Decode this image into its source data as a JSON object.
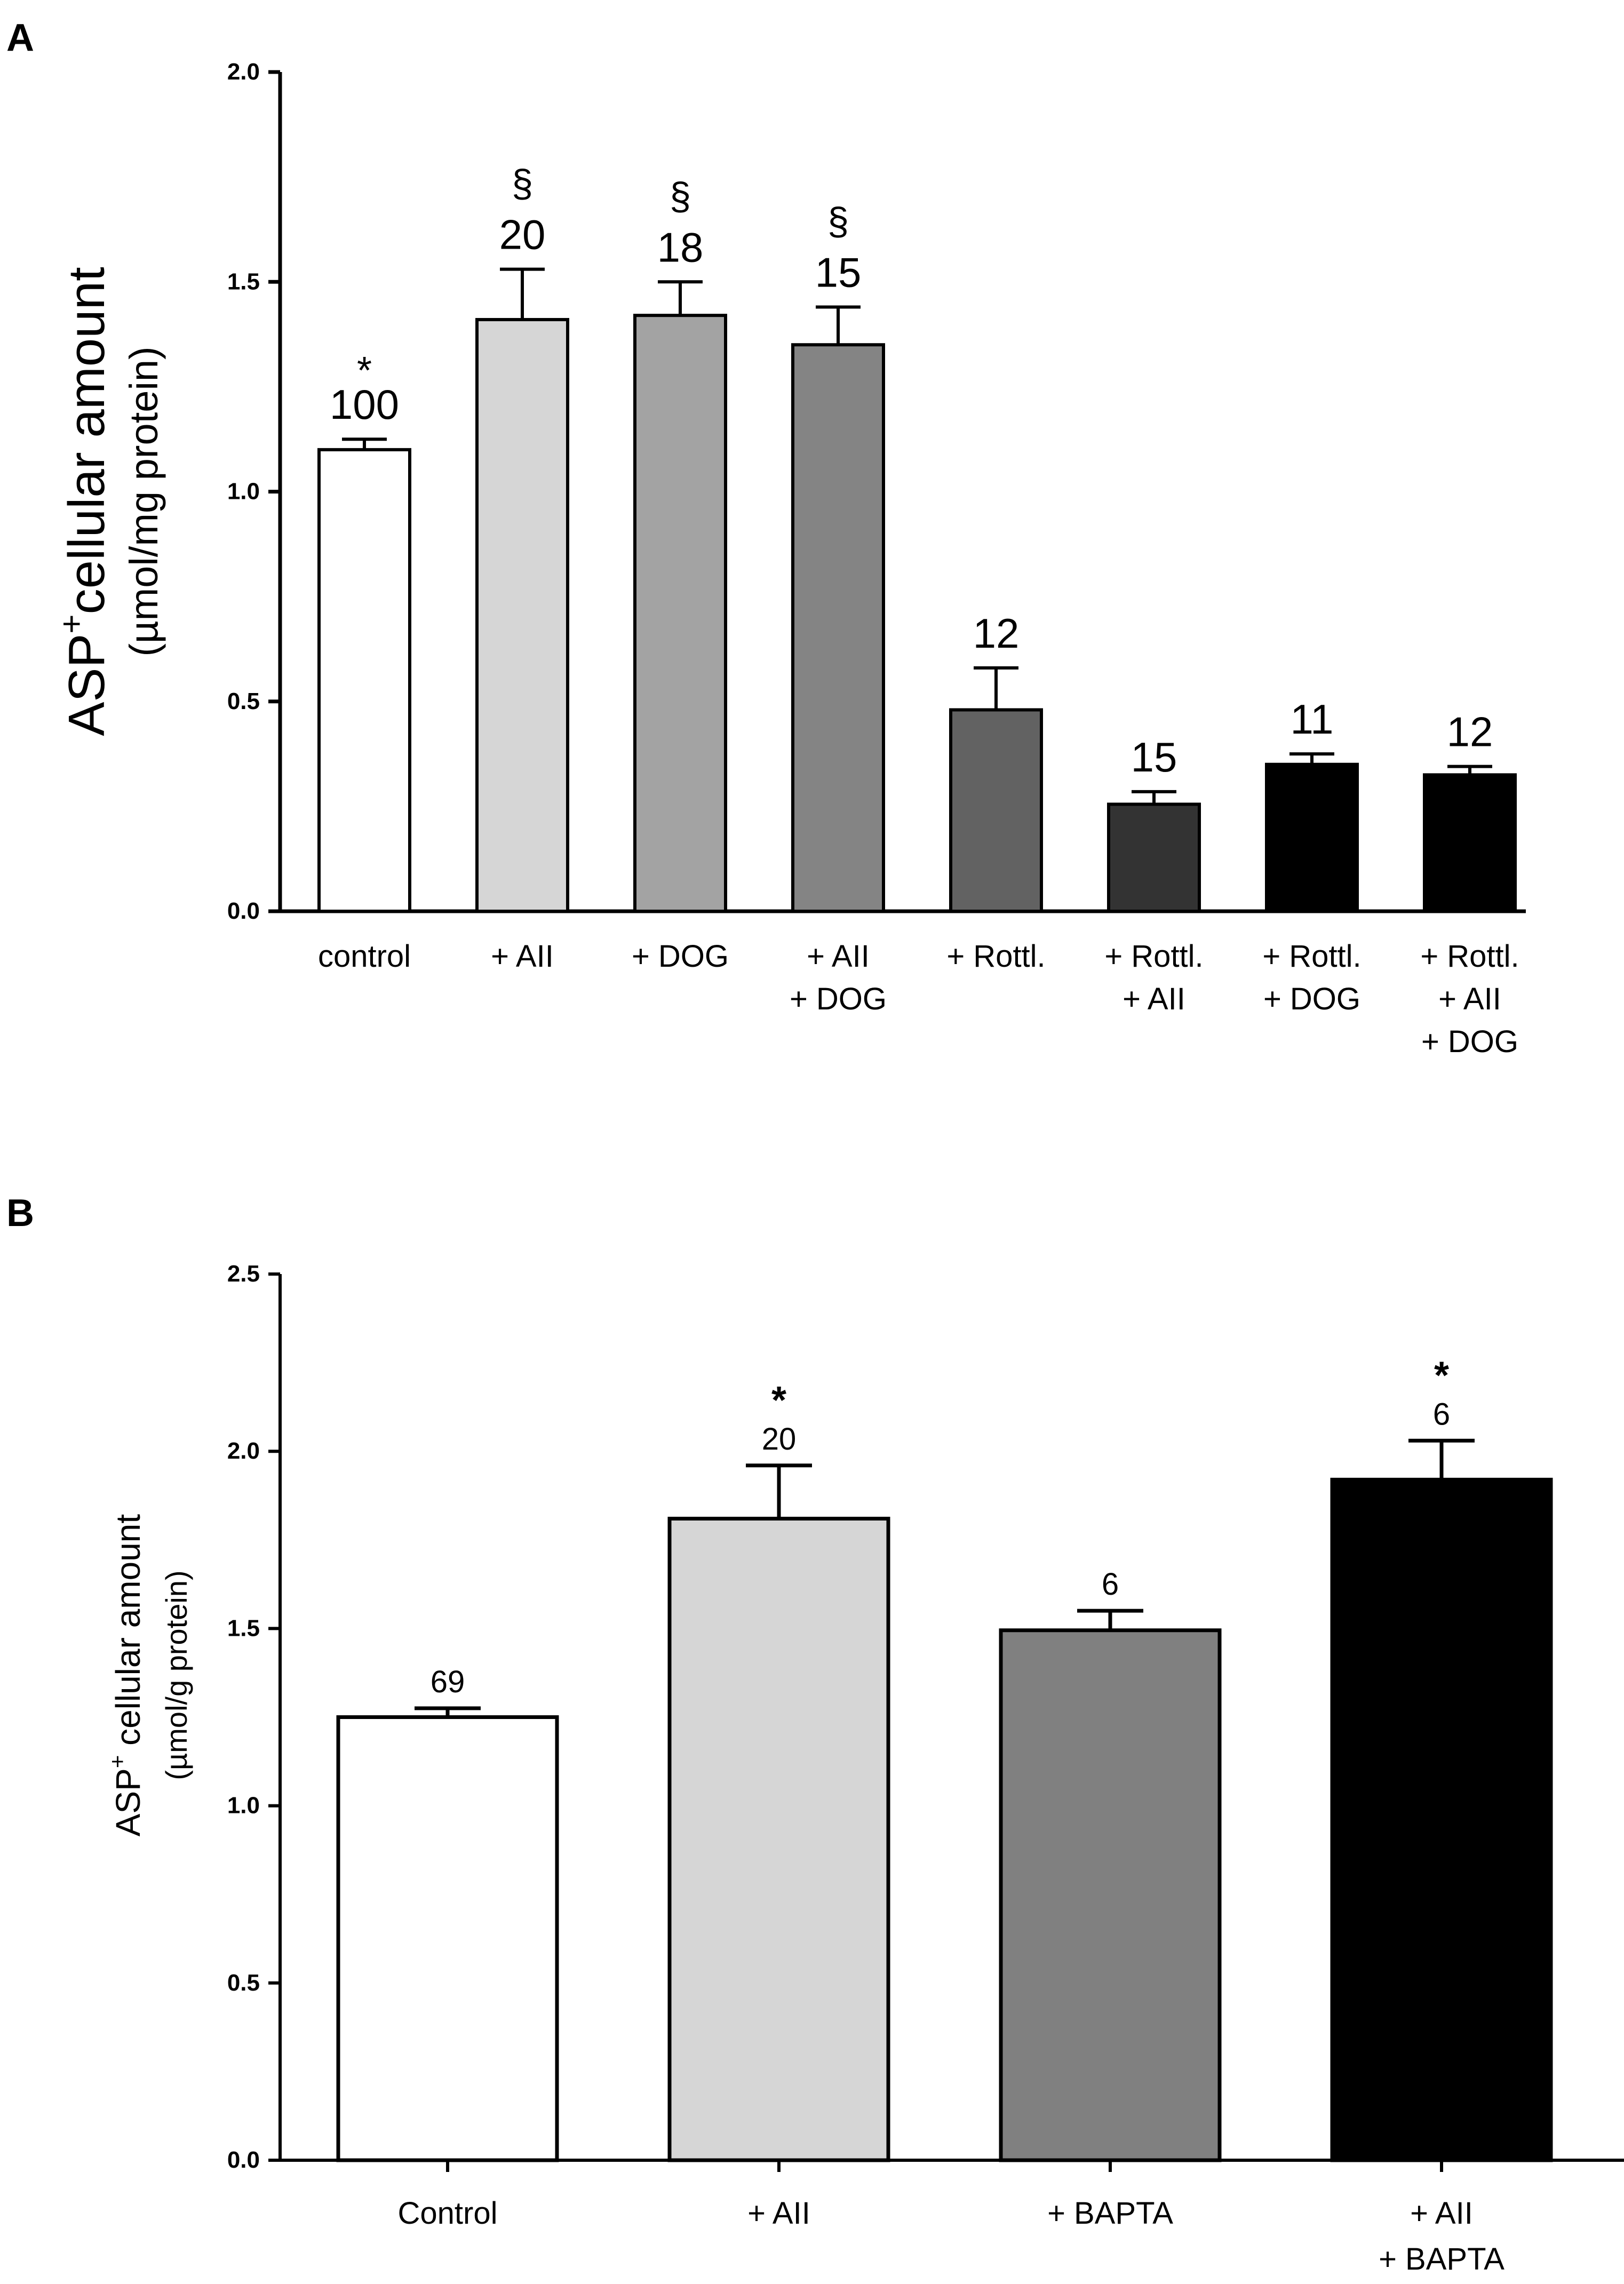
{
  "chart_data": [
    {
      "panel": "A",
      "type": "bar",
      "ylabel_line1": "ASP",
      "ylabel_sup": "+",
      "ylabel_line1_rest": "cellular amount",
      "ylabel_line2": "(µmol/mg protein)",
      "ylim": [
        0,
        2.0
      ],
      "yticks": [
        "0.0",
        "0.5",
        "1.0",
        "1.5",
        "2.0"
      ],
      "ytick_values": [
        0,
        0.5,
        1.0,
        1.5,
        2.0
      ],
      "categories": [
        [
          "control"
        ],
        [
          "+ AII"
        ],
        [
          "+ DOG"
        ],
        [
          "+ AII",
          "+ DOG"
        ],
        [
          "+ Rottl."
        ],
        [
          "+ Rottl.",
          "+ AII"
        ],
        [
          "+ Rottl.",
          "+ DOG"
        ],
        [
          "+ Rottl.",
          "+ AII",
          "+ DOG"
        ]
      ],
      "values": [
        1.1,
        1.41,
        1.42,
        1.35,
        0.48,
        0.255,
        0.35,
        0.325
      ],
      "errors": [
        0.025,
        0.12,
        0.08,
        0.09,
        0.1,
        0.03,
        0.025,
        0.02
      ],
      "n_labels": [
        "100",
        "20",
        "18",
        "15",
        "12",
        "15",
        "11",
        "12"
      ],
      "significance": [
        "*",
        "§",
        "§",
        "§",
        "",
        "",
        "",
        ""
      ],
      "colors": [
        "#ffffff",
        "#d6d6d6",
        "#a3a3a3",
        "#848484",
        "#626262",
        "#333333",
        "#000000",
        "#000000"
      ]
    },
    {
      "panel": "B",
      "type": "bar",
      "ylabel_line1": "ASP",
      "ylabel_sup": "+",
      "ylabel_line1_rest": " cellular amount",
      "ylabel_line2": "(µmol/g protein)",
      "ylim": [
        0,
        2.5
      ],
      "yticks": [
        "0.0",
        "0.5",
        "1.0",
        "1.5",
        "2.0",
        "2.5"
      ],
      "ytick_values": [
        0,
        0.5,
        1.0,
        1.5,
        2.0,
        2.5
      ],
      "categories": [
        [
          "Control"
        ],
        [
          "+ AII"
        ],
        [
          "+ BAPTA"
        ],
        [
          "+ AII",
          "+ BAPTA"
        ]
      ],
      "values": [
        1.25,
        1.81,
        1.495,
        1.92
      ],
      "errors": [
        0.025,
        0.15,
        0.055,
        0.11
      ],
      "n_labels": [
        "69",
        "20",
        "6",
        "6"
      ],
      "significance": [
        "",
        "*",
        "",
        "*"
      ],
      "colors": [
        "#ffffff",
        "#d6d6d6",
        "#808080",
        "#000000"
      ]
    }
  ]
}
